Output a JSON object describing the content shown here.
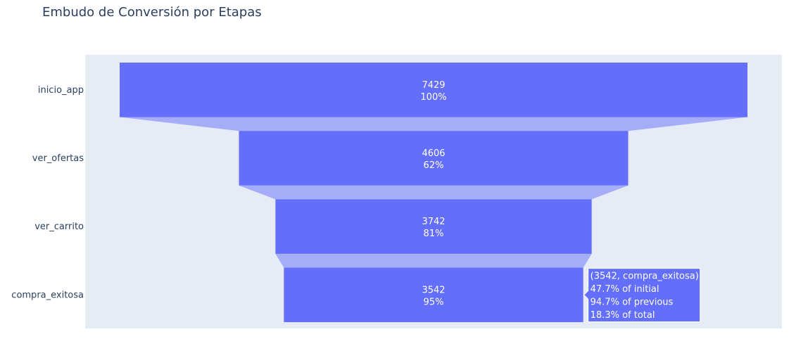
{
  "chart_data": {
    "type": "funnel",
    "title": "Embudo de Conversión por Etapas",
    "categories": [
      "inicio_app",
      "ver_ofertas",
      "ver_carrito",
      "compra_exitosa"
    ],
    "values": [
      7429,
      4606,
      3742,
      3542
    ],
    "percent_labels": [
      "100%",
      "62%",
      "81%",
      "95%"
    ],
    "colors": {
      "bar": "#636efa",
      "connector": "#a5acf8",
      "plot_bg": "#e5ecf6",
      "title": "#2a3f5f"
    },
    "hover": {
      "stage_index": 3,
      "lines": [
        "(3542, compra_exitosa)",
        "47.7% of initial",
        "94.7% of previous",
        "18.3% of total"
      ]
    }
  }
}
